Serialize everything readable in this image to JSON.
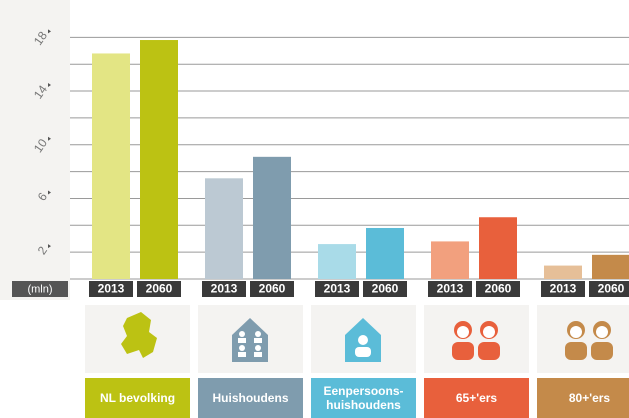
{
  "chart_data": {
    "type": "bar",
    "unit_label": "(mln)",
    "categories": [
      "NL bevolking",
      "Huishoudens",
      "Eenpersoons-huishoudens",
      "65+'ers",
      "80+'ers"
    ],
    "series": [
      {
        "name": "2013",
        "colors": [
          "#e3e584",
          "#bcc9d3",
          "#a9dbe8",
          "#f2a07e",
          "#e6bf98"
        ],
        "values": [
          16.8,
          7.5,
          2.6,
          2.8,
          1.0
        ]
      },
      {
        "name": "2060",
        "colors": [
          "#bcc213",
          "#7f9cae",
          "#5bbcd8",
          "#e8603c",
          "#c48a4a"
        ],
        "values": [
          17.8,
          9.1,
          3.8,
          4.6,
          1.8
        ]
      }
    ],
    "ylim": [
      0,
      18.1
    ],
    "yticks": [
      2,
      6,
      10,
      14,
      18
    ],
    "minor_yticks": [
      4,
      8,
      12,
      16
    ],
    "grid": true
  }
}
